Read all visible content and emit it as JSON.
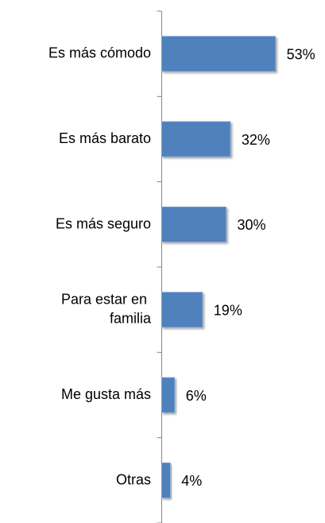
{
  "chart_data": {
    "type": "bar",
    "orientation": "horizontal",
    "categories": [
      "Es más cómodo",
      "Es más barato",
      "Es más seguro",
      "Para estar en familia",
      "Me gusta más",
      "Otras"
    ],
    "values": [
      53,
      32,
      30,
      19,
      6,
      4
    ],
    "value_labels": [
      "53%",
      "32%",
      "30%",
      "19%",
      "6%",
      "4%"
    ],
    "color": "#4f81bd"
  }
}
